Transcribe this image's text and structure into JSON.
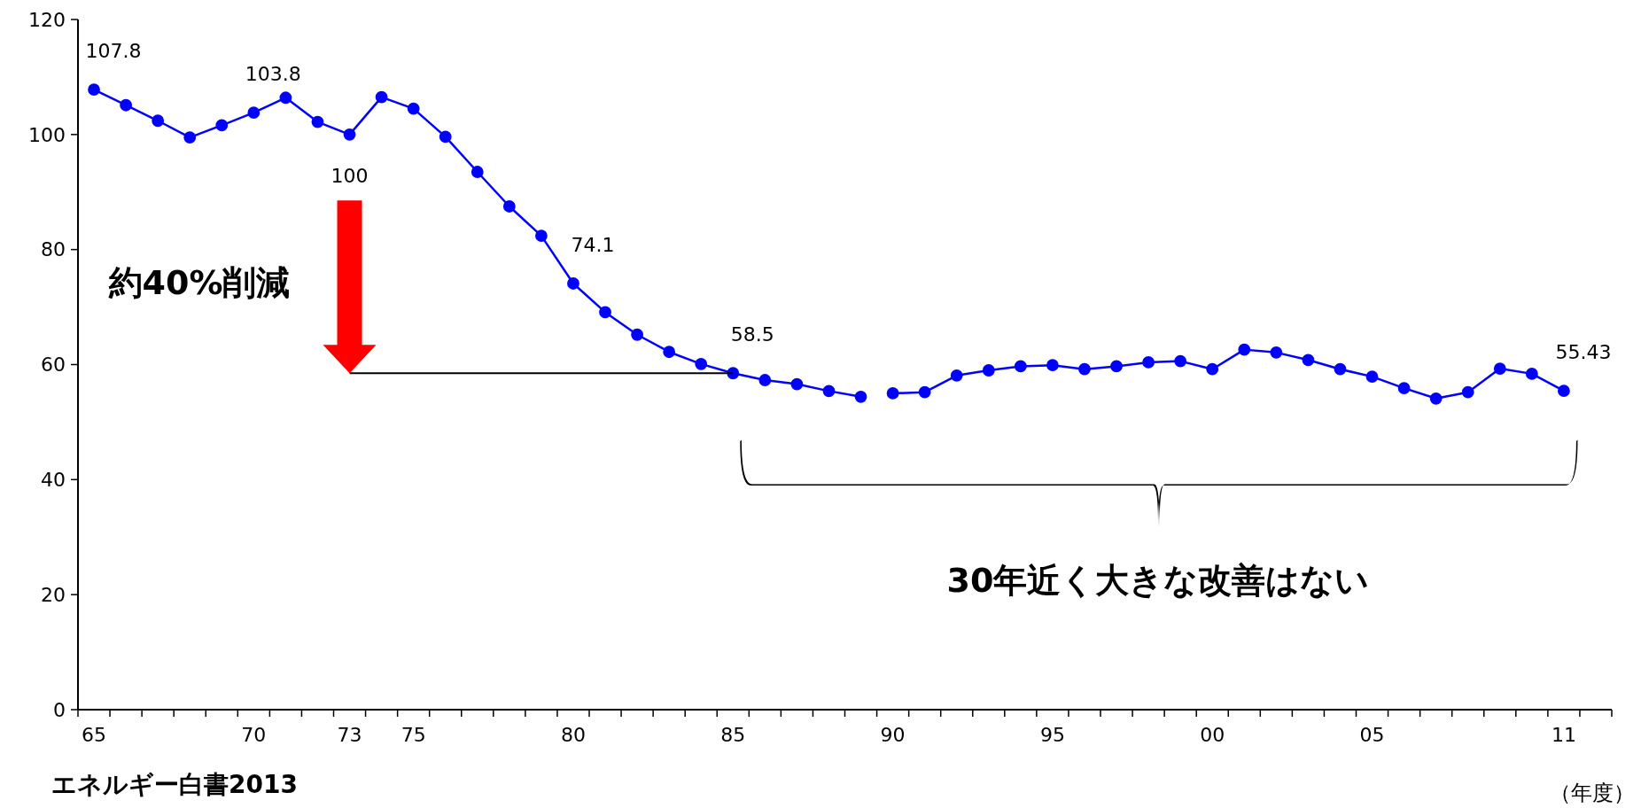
{
  "chart_data": {
    "type": "line",
    "xlabel": "（年度）",
    "annotations": [
      "約40%削減",
      "30年近く大きな改善はない",
      "エネルギー白書2013"
    ],
    "xlim": [
      1964.5,
      2012.5
    ],
    "xticks": [
      {
        "value": 1965,
        "label": "65"
      },
      {
        "value": 1970,
        "label": "70"
      },
      {
        "value": 1973,
        "label": "73"
      },
      {
        "value": 1975,
        "label": "75"
      },
      {
        "value": 1980,
        "label": "80"
      },
      {
        "value": 1985,
        "label": "85"
      },
      {
        "value": 1990,
        "label": "90"
      },
      {
        "value": 1995,
        "label": "95"
      },
      {
        "value": 2000,
        "label": "00"
      },
      {
        "value": 2005,
        "label": "05"
      },
      {
        "value": 2011,
        "label": "11"
      },
      {
        "value": 1964.5,
        "label": null
      },
      {
        "value": 1965.5,
        "label": null
      },
      {
        "value": 1966.5,
        "label": null
      },
      {
        "value": 1967.5,
        "label": null
      },
      {
        "value": 1968.5,
        "label": null
      },
      {
        "value": 1969.5,
        "label": null
      },
      {
        "value": 1970.5,
        "label": null
      },
      {
        "value": 1971.5,
        "label": null
      },
      {
        "value": 1972.5,
        "label": null
      },
      {
        "value": 1973.5,
        "label": null
      },
      {
        "value": 1974.5,
        "label": null
      },
      {
        "value": 1975.5,
        "label": null
      },
      {
        "value": 1976.5,
        "label": null
      },
      {
        "value": 1977.5,
        "label": null
      },
      {
        "value": 1978.5,
        "label": null
      },
      {
        "value": 1979.5,
        "label": null
      },
      {
        "value": 1980.5,
        "label": null
      },
      {
        "value": 1981.5,
        "label": null
      },
      {
        "value": 1982.5,
        "label": null
      },
      {
        "value": 1983.5,
        "label": null
      },
      {
        "value": 1984.5,
        "label": null
      },
      {
        "value": 1985.5,
        "label": null
      },
      {
        "value": 1986.5,
        "label": null
      },
      {
        "value": 1987.5,
        "label": null
      },
      {
        "value": 1988.5,
        "label": null
      },
      {
        "value": 1989.5,
        "label": null
      },
      {
        "value": 1990.5,
        "label": null
      },
      {
        "value": 1991.5,
        "label": null
      },
      {
        "value": 1992.5,
        "label": null
      },
      {
        "value": 1993.5,
        "label": null
      },
      {
        "value": 1994.5,
        "label": null
      },
      {
        "value": 1995.5,
        "label": null
      },
      {
        "value": 1996.5,
        "label": null
      },
      {
        "value": 1997.5,
        "label": null
      },
      {
        "value": 1998.5,
        "label": null
      },
      {
        "value": 1999.5,
        "label": null
      },
      {
        "value": 2000.5,
        "label": null
      },
      {
        "value": 2001.5,
        "label": null
      },
      {
        "value": 2002.5,
        "label": null
      },
      {
        "value": 2003.5,
        "label": null
      },
      {
        "value": 2004.5,
        "label": null
      },
      {
        "value": 2005.5,
        "label": null
      },
      {
        "value": 2006.5,
        "label": null
      },
      {
        "value": 2007.5,
        "label": null
      },
      {
        "value": 2008.5,
        "label": null
      },
      {
        "value": 2009.5,
        "label": null
      },
      {
        "value": 2010.5,
        "label": null
      },
      {
        "value": 2011.5,
        "label": null
      },
      {
        "value": 2012.5,
        "label": null
      }
    ],
    "ylim": [
      0,
      120
    ],
    "yticks": [
      0,
      20,
      40,
      60,
      80,
      100,
      120
    ],
    "grid": false,
    "marker": "circle",
    "line_style": "solid",
    "series": [
      {
        "color": "#0000ff",
        "x": [
          1965,
          1966,
          1967,
          1968,
          1969,
          1970,
          1971,
          1972,
          1973,
          1974,
          1975,
          1976,
          1977,
          1978,
          1979,
          1980,
          1981,
          1982,
          1983,
          1984,
          1985,
          1986,
          1987,
          1988,
          1989
        ],
        "values": [
          107.8,
          105.1,
          102.4,
          99.5,
          101.6,
          103.8,
          106.4,
          102.2,
          100,
          106.5,
          104.5,
          99.6,
          93.5,
          87.5,
          82.4,
          74.1,
          69.1,
          65.2,
          62.2,
          60.1,
          58.5,
          57.3,
          56.6,
          55.4,
          54.4
        ],
        "value_labels": [
          "107.8",
          null,
          null,
          null,
          null,
          "103.8",
          null,
          null,
          "100",
          null,
          null,
          null,
          null,
          null,
          null,
          "74.1",
          null,
          null,
          null,
          null,
          "58.5",
          null,
          null,
          null,
          null
        ]
      },
      {
        "color": "#0000ff",
        "x": [
          1990,
          1991,
          1992,
          1993,
          1994,
          1995,
          1996,
          1997,
          1998,
          1999,
          2000,
          2001,
          2002,
          2003,
          2004,
          2005,
          2006,
          2007,
          2008,
          2009,
          2010,
          2011
        ],
        "values": [
          55.0,
          55.2,
          58.1,
          59.0,
          59.7,
          59.9,
          59.2,
          59.7,
          60.4,
          60.6,
          59.2,
          62.6,
          62.1,
          60.8,
          59.2,
          57.9,
          55.9,
          54.1,
          55.2,
          59.3,
          58.4,
          55.43
        ],
        "value_labels": [
          null,
          null,
          null,
          null,
          null,
          null,
          null,
          null,
          null,
          null,
          null,
          null,
          null,
          null,
          null,
          null,
          null,
          null,
          null,
          null,
          null,
          "55.43"
        ]
      },
      {
        "color": "#000000",
        "marker": "none",
        "x": [
          1973,
          1985
        ],
        "values": [
          58.5,
          58.5
        ]
      }
    ]
  }
}
